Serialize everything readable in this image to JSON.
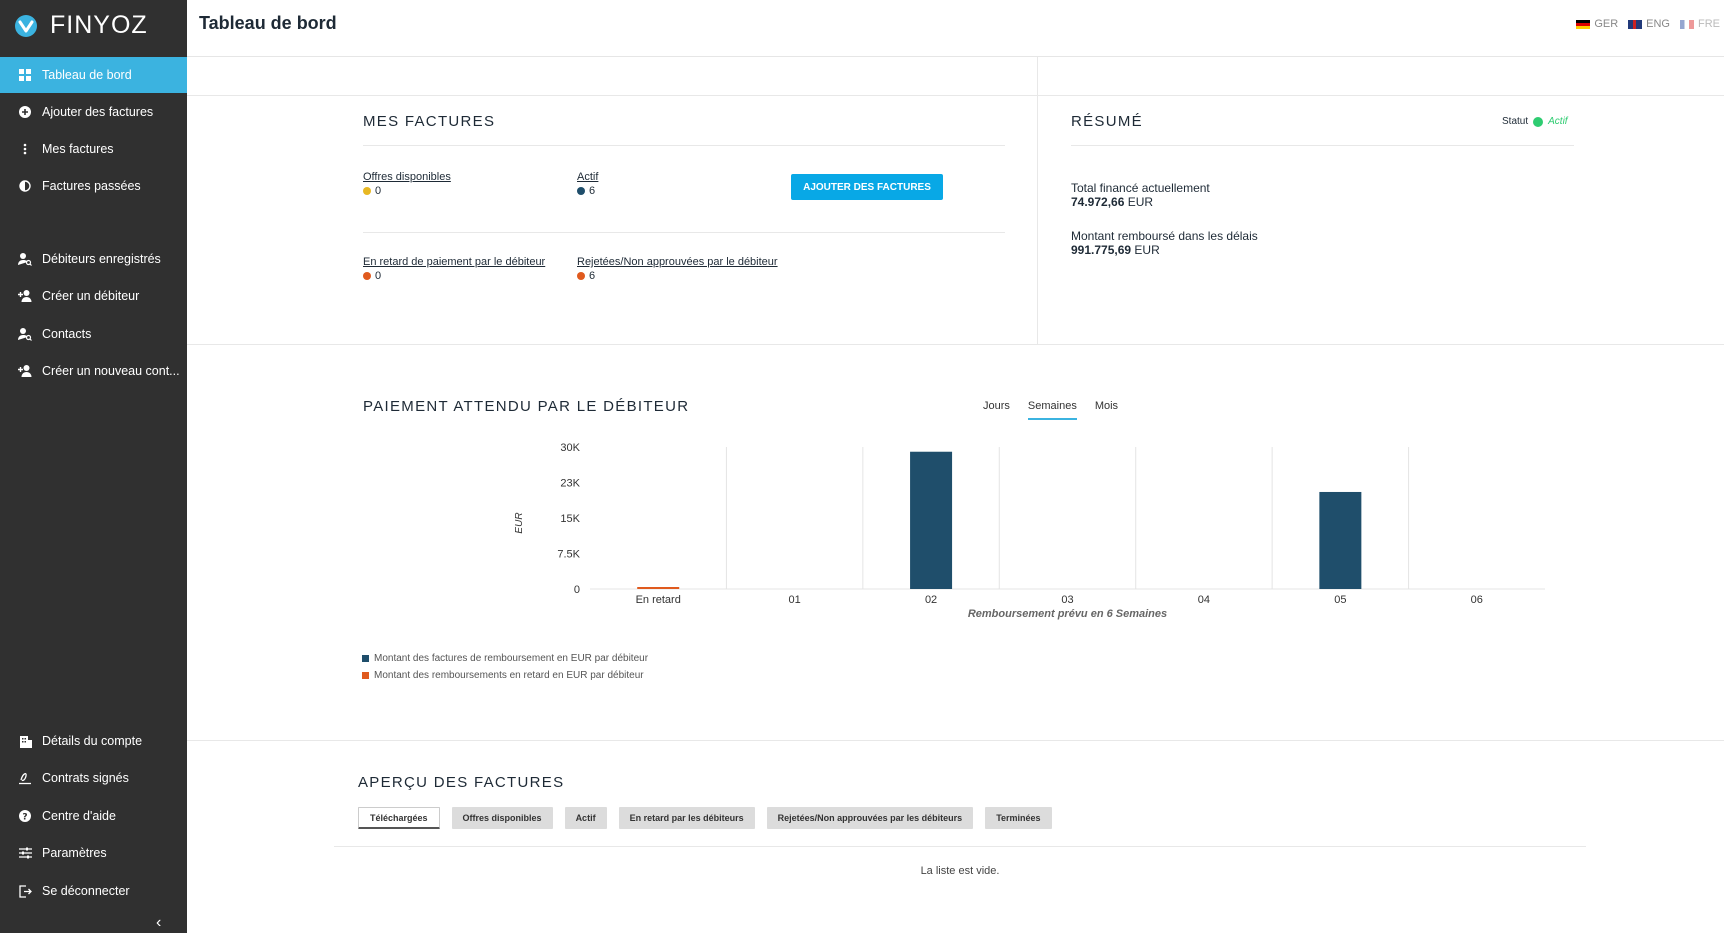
{
  "brand": {
    "name": "FINYOZ"
  },
  "sidebar": {
    "items": [
      {
        "label": "Tableau de bord",
        "icon": "dashboard-icon"
      },
      {
        "label": "Ajouter des factures",
        "icon": "add-circle-icon"
      },
      {
        "label": "Mes factures",
        "icon": "more-vertical-icon"
      },
      {
        "label": "Factures passées",
        "icon": "half-circle-icon"
      },
      {
        "label": "Débiteurs enregistrés",
        "icon": "user-search-icon"
      },
      {
        "label": "Créer un débiteur",
        "icon": "add-user-icon"
      },
      {
        "label": "Contacts",
        "icon": "user-search-icon"
      },
      {
        "label": "Créer un nouveau cont...",
        "icon": "add-user-icon"
      },
      {
        "label": "Détails du compte",
        "icon": "building-icon"
      },
      {
        "label": "Contrats signés",
        "icon": "signature-icon"
      },
      {
        "label": "Centre d'aide",
        "icon": "help-icon"
      },
      {
        "label": "Paramètres",
        "icon": "sliders-icon"
      },
      {
        "label": "Se déconnecter",
        "icon": "logout-icon"
      }
    ],
    "collapse_glyph": "‹"
  },
  "header": {
    "title": "Tableau de bord",
    "languages": [
      "GER",
      "ENG",
      "FRE"
    ]
  },
  "mes_factures": {
    "title": "MES FACTURES",
    "offres": {
      "label": "Offres disponibles",
      "value": "0"
    },
    "actif": {
      "label": "Actif",
      "value": "6"
    },
    "retard": {
      "label": "En retard de paiement par le débiteur",
      "value": "0"
    },
    "rejetees": {
      "label": "Rejetées/Non approuvées par le débiteur",
      "value": "6"
    },
    "add_button": "AJOUTER DES FACTURES"
  },
  "resume": {
    "title": "RÉSUMÉ",
    "statut_label": "Statut",
    "statut_value": "Actif",
    "total_label": "Total financé actuellement",
    "total_amount": "74.972,66",
    "total_currency": "EUR",
    "rembourse_label": "Montant remboursé dans les délais",
    "rembourse_amount": "991.775,69",
    "rembourse_currency": "EUR"
  },
  "paiement": {
    "title": "PAIEMENT ATTENDU PAR LE DÉBITEUR",
    "tabs": [
      "Jours",
      "Semaines",
      "Mois"
    ],
    "selected_tab": "Semaines"
  },
  "chart_data": {
    "type": "bar",
    "categories": [
      "En retard",
      "01",
      "02",
      "03",
      "04",
      "05",
      "06"
    ],
    "series": [
      {
        "name": "Montant des factures de remboursement en EUR par débiteur",
        "color": "#1f4e6b",
        "values": [
          0,
          0,
          29000,
          0,
          0,
          20500,
          0
        ]
      },
      {
        "name": "Montant des remboursements en retard en EUR par débiteur",
        "color": "#e05a1e",
        "values": [
          300,
          0,
          0,
          0,
          0,
          0,
          0
        ]
      }
    ],
    "yticks": [
      "0",
      "7.5K",
      "15K",
      "23K",
      "30K"
    ],
    "ytick_values": [
      0,
      7500,
      15000,
      22500,
      30000
    ],
    "ylim": [
      0,
      30000
    ],
    "ylabel": "EUR",
    "xlabel": "Remboursement prévu en 6 Semaines"
  },
  "apercu": {
    "title": "APERÇU DES FACTURES",
    "filters": [
      "Téléchargées",
      "Offres disponibles",
      "Actif",
      "En retard par les débiteurs",
      "Rejetées/Non approuvées par les débiteurs",
      "Terminées"
    ],
    "selected_filter": "Téléchargées",
    "empty_text": "La liste est vide."
  },
  "colors": {
    "accent": "#3bb3e0",
    "button": "#08a8e6",
    "yellow": "#e8b823",
    "navy": "#1f4e6b",
    "orange": "#e05a1e",
    "green": "#2ecc71"
  }
}
